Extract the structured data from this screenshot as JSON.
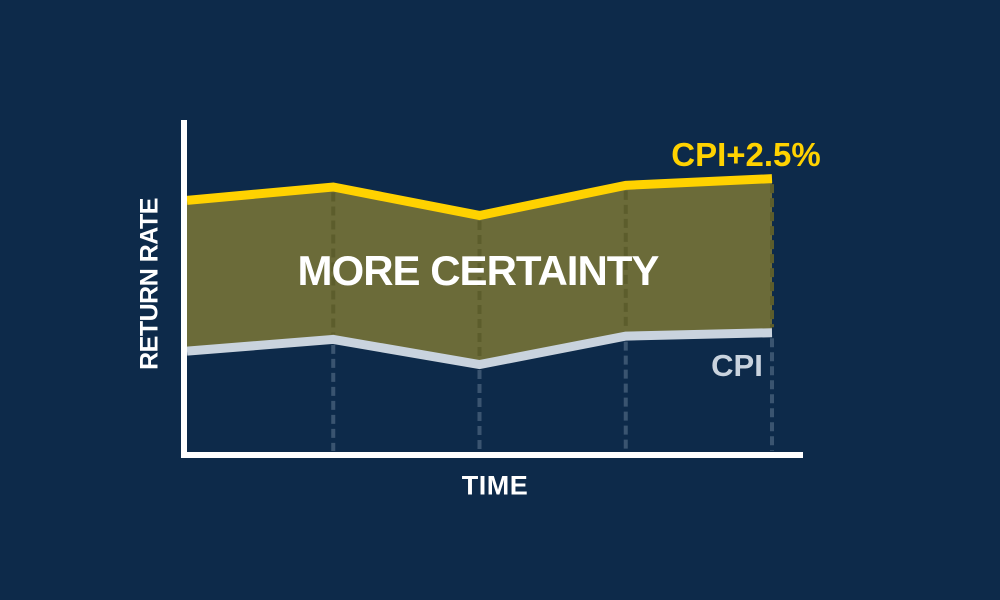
{
  "chart_data": {
    "type": "area",
    "title": "",
    "xlabel": "TIME",
    "ylabel": "RETURN RATE",
    "x": [
      0,
      1,
      2,
      3,
      4
    ],
    "x_tick_labels": [],
    "ylim": [
      0,
      10
    ],
    "grid": "vertical dashed guide lines at interior and right data points, no horizontal gridlines, no numeric ticks",
    "legend_position": "inline labels at right end of each line",
    "band_label": "MORE CERTAINTY",
    "band_fill": "#6b6b39",
    "series": [
      {
        "name": "CPI+2.5%",
        "color": "#ffd200",
        "values": [
          7.6,
          8.0,
          7.15,
          8.05,
          8.25
        ]
      },
      {
        "name": "CPI",
        "color": "#c9d3de",
        "values": [
          3.1,
          3.45,
          2.7,
          3.55,
          3.65
        ]
      }
    ]
  },
  "colors": {
    "background": "#0d2a4a",
    "axis": "#ffffff",
    "grid_on_band": "#5c5d2c",
    "grid_on_background": "#3a5470",
    "band_label_text": "#ffffff",
    "axis_label_text": "#ffffff"
  }
}
